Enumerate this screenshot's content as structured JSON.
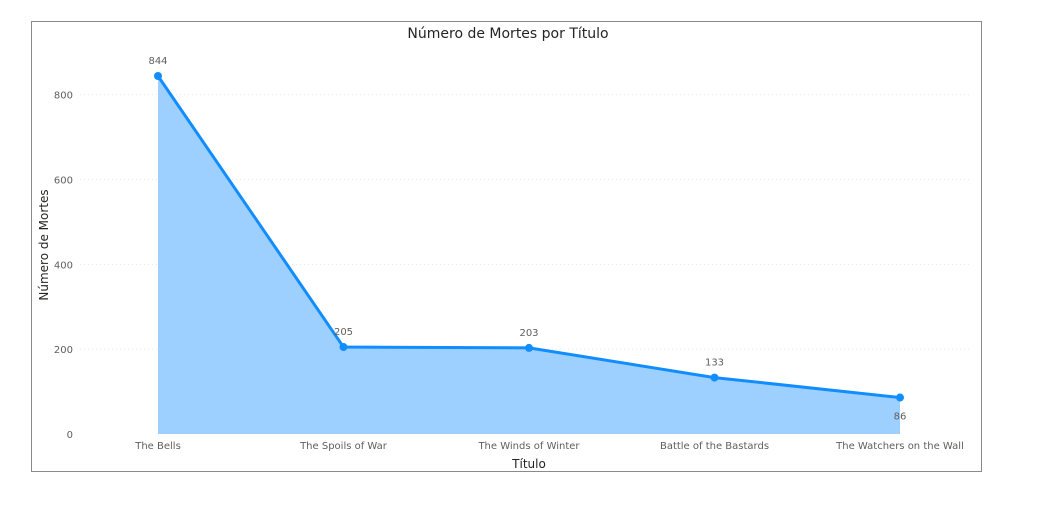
{
  "chart_data": {
    "type": "area",
    "title": "Número de Mortes por Título",
    "xlabel": "Título",
    "ylabel": "Número de Mortes",
    "categories": [
      "The Bells",
      "The Spoils of War",
      "The Winds of Winter",
      "Battle of the Bastards",
      "The Watchers on the Wall"
    ],
    "values": [
      844,
      205,
      203,
      133,
      86
    ],
    "value_labels": [
      "844",
      "205",
      "203",
      "133",
      "86"
    ],
    "ylim": [
      0,
      844
    ],
    "yticks": [
      0,
      200,
      400,
      600,
      800
    ],
    "ytick_labels": [
      "0",
      "200",
      "400",
      "600",
      "800"
    ],
    "grid": true,
    "colors": {
      "line": "#118DFF",
      "fill": "#9ED0FF"
    }
  }
}
